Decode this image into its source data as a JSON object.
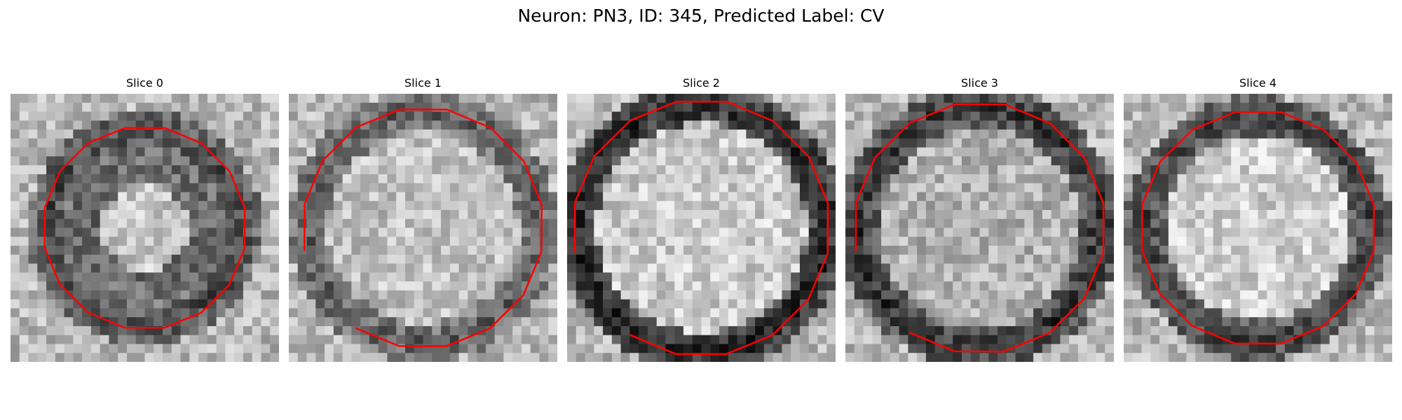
{
  "figure": {
    "title": "Neuron: PN3, ID: 345, Predicted Label: CV",
    "contour_color": "#ff0000",
    "colormap": "gray"
  },
  "slices": [
    {
      "label": "Slice 0",
      "ring_intensity": 0.28,
      "center_intensity": 0.78,
      "ring_radius": 0.36,
      "contour": "ring"
    },
    {
      "label": "Slice 1",
      "ring_intensity": 0.35,
      "center_intensity": 0.76,
      "ring_radius": 0.43,
      "contour": "ring-broken"
    },
    {
      "label": "Slice 2",
      "ring_intensity": 0.15,
      "center_intensity": 0.8,
      "ring_radius": 0.46,
      "contour": "ring-broken"
    },
    {
      "label": "Slice 3",
      "ring_intensity": 0.2,
      "center_intensity": 0.7,
      "ring_radius": 0.45,
      "contour": "ring-broken"
    },
    {
      "label": "Slice 4",
      "ring_intensity": 0.25,
      "center_intensity": 0.82,
      "ring_radius": 0.42,
      "contour": "ring"
    }
  ]
}
